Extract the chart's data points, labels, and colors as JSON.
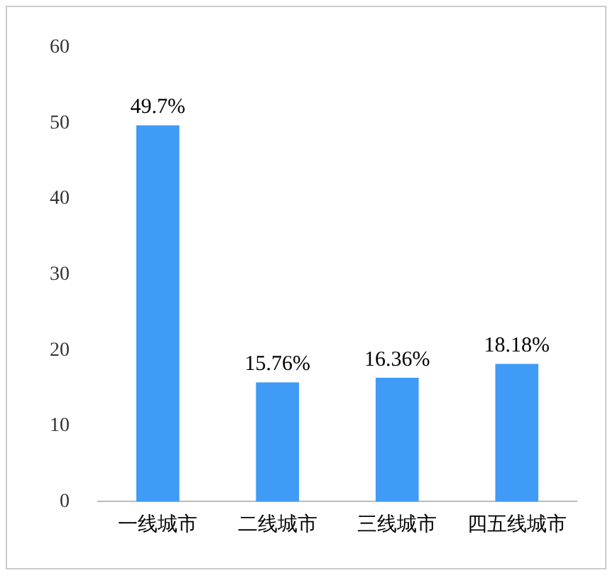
{
  "chart_data": {
    "type": "bar",
    "categories": [
      "一线城市",
      "二线城市",
      "三线城市",
      "四五线城市"
    ],
    "values": [
      49.7,
      15.76,
      16.36,
      18.18
    ],
    "value_labels": [
      "49.7%",
      "15.76%",
      "16.36%",
      "18.18%"
    ],
    "color": "#3f9bf5",
    "ylim": [
      0,
      60
    ],
    "yticks": [
      0,
      10,
      20,
      30,
      40,
      50,
      60
    ],
    "grid": false,
    "legend": false
  }
}
